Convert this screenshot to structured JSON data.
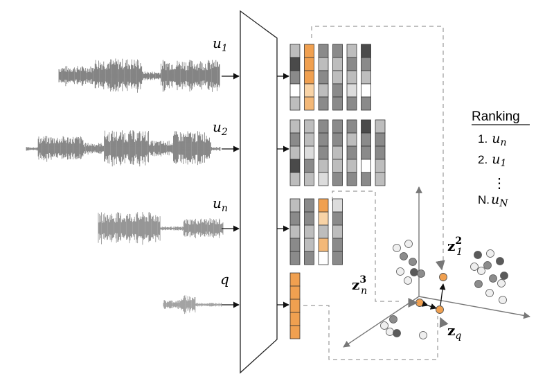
{
  "utterances": [
    {
      "label": "u",
      "sub": "1"
    },
    {
      "label": "u",
      "sub": "2"
    },
    {
      "label": "u",
      "sub": "n"
    },
    {
      "label": "q",
      "sub": ""
    }
  ],
  "embedding_labels": {
    "z12": {
      "main": "z",
      "sub": "1",
      "sup": "2"
    },
    "zn3": {
      "main": "z",
      "sub": "n",
      "sup": "3"
    },
    "zq": {
      "main": "z",
      "sub": "q"
    }
  },
  "ranking": {
    "title": "Ranking",
    "items": [
      {
        "prefix": "1.",
        "var": "u",
        "sub": "n"
      },
      {
        "prefix": "2.",
        "var": "u",
        "sub": "1"
      },
      {
        "prefix": "N.",
        "var": "u",
        "sub": "N"
      }
    ],
    "ellipsis": "⋮"
  },
  "colors": {
    "highlight": "#f0a050",
    "highlight_light": "#f8d3a6",
    "highlight_mid": "#f3b878",
    "grid_dark": "#4a4a4a",
    "grid_mid": "#8a8a8a",
    "grid_light": "#bdbdbd",
    "grid_lighter": "#dcdcdc",
    "white": "#ffffff",
    "dash": "#9a9a9a"
  }
}
